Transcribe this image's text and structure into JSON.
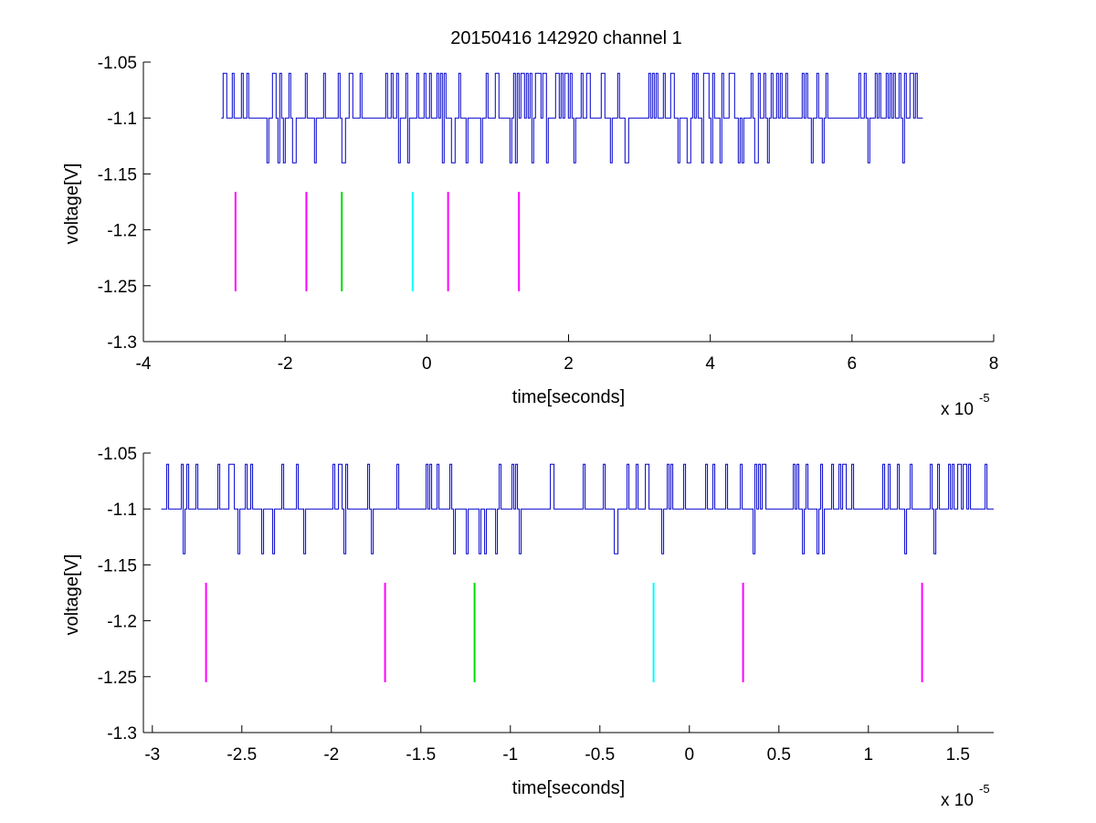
{
  "title": "20150416 142920 channel 1",
  "chart_data": [
    {
      "type": "line",
      "xlabel": "time[seconds]",
      "ylabel": "voltage[V]",
      "x_exponent_base": "x 10",
      "x_exponent_power": "-5",
      "xlim": [
        -4,
        8
      ],
      "ylim": [
        -1.3,
        -1.05
      ],
      "xticks": [
        -4,
        -2,
        0,
        2,
        4,
        6,
        8
      ],
      "xtick_labels": [
        "-4",
        "-2",
        "0",
        "2",
        "4",
        "6",
        "8"
      ],
      "yticks": [
        -1.3,
        -1.25,
        -1.2,
        -1.15,
        -1.1,
        -1.05
      ],
      "ytick_labels": [
        "-1.3",
        "-1.25",
        "-1.2",
        "-1.15",
        "-1.1",
        "-1.05"
      ],
      "grid": false,
      "signal": {
        "color": "#0000cc",
        "x_start": -2.9,
        "x_end": 7.0,
        "baseline": -1.1,
        "levels": [
          -1.06,
          -1.1,
          -1.14
        ]
      },
      "markers": [
        {
          "x": -2.7,
          "y_top": -1.166,
          "y_bottom": -1.255,
          "color": "#ff00ff"
        },
        {
          "x": -1.7,
          "y_top": -1.166,
          "y_bottom": -1.255,
          "color": "#ff00ff"
        },
        {
          "x": -1.2,
          "y_top": -1.166,
          "y_bottom": -1.255,
          "color": "#00dd00"
        },
        {
          "x": -0.2,
          "y_top": -1.166,
          "y_bottom": -1.255,
          "color": "#00ffff"
        },
        {
          "x": 0.3,
          "y_top": -1.166,
          "y_bottom": -1.255,
          "color": "#ff00ff"
        },
        {
          "x": 1.3,
          "y_top": -1.166,
          "y_bottom": -1.255,
          "color": "#ff00ff"
        }
      ]
    },
    {
      "type": "line",
      "xlabel": "time[seconds]",
      "ylabel": "voltage[V]",
      "x_exponent_base": "x 10",
      "x_exponent_power": "-5",
      "xlim": [
        -3.05,
        1.7
      ],
      "ylim": [
        -1.3,
        -1.05
      ],
      "xticks": [
        -3,
        -2.5,
        -2,
        -1.5,
        -1,
        -0.5,
        0,
        0.5,
        1,
        1.5
      ],
      "xtick_labels": [
        "-3",
        "-2.5",
        "-2",
        "-1.5",
        "-1",
        "-0.5",
        "0",
        "0.5",
        "1",
        "1.5"
      ],
      "yticks": [
        -1.3,
        -1.25,
        -1.2,
        -1.15,
        -1.1,
        -1.05
      ],
      "ytick_labels": [
        "-1.3",
        "-1.25",
        "-1.2",
        "-1.15",
        "-1.1",
        "-1.05"
      ],
      "grid": false,
      "signal": {
        "color": "#0000cc",
        "x_start": -2.95,
        "x_end": 1.7,
        "baseline": -1.1,
        "levels": [
          -1.06,
          -1.1,
          -1.14
        ]
      },
      "markers": [
        {
          "x": -2.7,
          "y_top": -1.166,
          "y_bottom": -1.255,
          "color": "#ff00ff"
        },
        {
          "x": -1.7,
          "y_top": -1.166,
          "y_bottom": -1.255,
          "color": "#ff00ff"
        },
        {
          "x": -1.2,
          "y_top": -1.166,
          "y_bottom": -1.255,
          "color": "#00dd00"
        },
        {
          "x": -0.2,
          "y_top": -1.166,
          "y_bottom": -1.255,
          "color": "#00ffff"
        },
        {
          "x": 0.3,
          "y_top": -1.166,
          "y_bottom": -1.255,
          "color": "#ff00ff"
        },
        {
          "x": 1.3,
          "y_top": -1.166,
          "y_bottom": -1.255,
          "color": "#ff00ff"
        }
      ]
    }
  ]
}
